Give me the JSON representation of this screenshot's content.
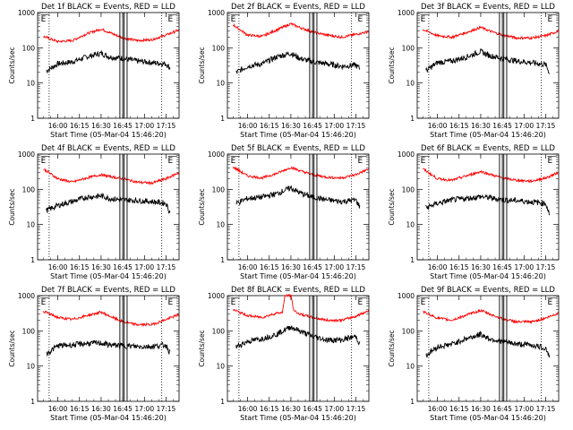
{
  "figure": {
    "y_axis_label": "Counts/sec",
    "x_axis_label": "Start Time (05-Mar-04 15:46:20)",
    "y_tick_labels": [
      "1",
      "10",
      "100",
      "1000"
    ],
    "x_tick_labels": [
      "16:00",
      "16:15",
      "16:30",
      "16:45",
      "17:00",
      "17:15"
    ],
    "event_series_color": "#000000",
    "lld_series_color": "#ff0000",
    "flag_marker_label": "E"
  },
  "chart_data": [
    {
      "type": "line",
      "title": "Det 1f BLACK = Events, RED = LLD",
      "xlabel": "Start Time (05-Mar-04 15:46:20)",
      "ylabel": "Counts/sec",
      "y_scale": "log",
      "ylim": [
        1,
        1000
      ],
      "xlim": [
        "15:46",
        "17:24"
      ],
      "series": [
        {
          "name": "BLACK = Events",
          "color": "#000000",
          "x": [
            "15:52",
            "16:00",
            "16:10",
            "16:20",
            "16:30",
            "16:36",
            "16:45",
            "16:55",
            "17:05",
            "17:15",
            "17:18"
          ],
          "values": [
            22,
            35,
            40,
            55,
            70,
            55,
            50,
            42,
            38,
            35,
            26
          ]
        },
        {
          "name": "RED = LLD",
          "color": "#ff0000",
          "x": [
            "15:50",
            "16:00",
            "16:10",
            "16:20",
            "16:30",
            "16:36",
            "16:45",
            "16:55",
            "17:05",
            "17:15",
            "17:24"
          ],
          "values": [
            210,
            150,
            160,
            250,
            340,
            270,
            190,
            160,
            170,
            230,
            320
          ]
        }
      ],
      "vertical_lines": [
        "16:43",
        "16:45",
        "16:46",
        "16:48"
      ],
      "dotted_lines": [
        "15:54",
        "17:12"
      ],
      "flags": [
        "15:47",
        "17:15"
      ]
    },
    {
      "type": "line",
      "title": "Det 2f BLACK = Events, RED = LLD",
      "xlabel": "Start Time (05-Mar-04 15:46:20)",
      "ylabel": "Counts/sec",
      "y_scale": "log",
      "ylim": [
        1,
        1000
      ],
      "xlim": [
        "15:46",
        "17:24"
      ],
      "series": [
        {
          "name": "BLACK = Events",
          "color": "#000000",
          "x": [
            "15:52",
            "16:00",
            "16:10",
            "16:20",
            "16:30",
            "16:36",
            "16:45",
            "16:55",
            "17:05",
            "17:15",
            "17:18"
          ],
          "values": [
            20,
            30,
            35,
            55,
            70,
            50,
            40,
            35,
            30,
            32,
            25
          ]
        },
        {
          "name": "RED = LLD",
          "color": "#ff0000",
          "x": [
            "15:50",
            "16:00",
            "16:10",
            "16:20",
            "16:30",
            "16:36",
            "16:45",
            "16:55",
            "17:05",
            "17:15",
            "17:24"
          ],
          "values": [
            450,
            230,
            210,
            320,
            480,
            380,
            280,
            230,
            200,
            240,
            290
          ]
        }
      ],
      "vertical_lines": [
        "16:43",
        "16:45",
        "16:46",
        "16:48"
      ],
      "dotted_lines": [
        "15:54",
        "17:12"
      ],
      "flags": [
        "15:47",
        "17:15"
      ]
    },
    {
      "type": "line",
      "title": "Det 3f BLACK = Events, RED = LLD",
      "xlabel": "Start Time (05-Mar-04 15:46:20)",
      "ylabel": "Counts/sec",
      "y_scale": "log",
      "ylim": [
        1,
        1000
      ],
      "xlim": [
        "15:46",
        "17:24"
      ],
      "series": [
        {
          "name": "BLACK = Events",
          "color": "#000000",
          "x": [
            "15:52",
            "16:00",
            "16:10",
            "16:20",
            "16:30",
            "16:36",
            "16:45",
            "16:55",
            "17:05",
            "17:15",
            "17:18"
          ],
          "values": [
            22,
            38,
            42,
            55,
            78,
            60,
            50,
            42,
            38,
            33,
            18
          ]
        },
        {
          "name": "RED = LLD",
          "color": "#ff0000",
          "x": [
            "15:50",
            "16:00",
            "16:10",
            "16:20",
            "16:30",
            "16:36",
            "16:45",
            "16:55",
            "17:05",
            "17:15",
            "17:24"
          ],
          "values": [
            330,
            220,
            200,
            270,
            380,
            300,
            230,
            190,
            190,
            220,
            300
          ]
        }
      ],
      "vertical_lines": [
        "16:43",
        "16:45",
        "16:46",
        "16:48"
      ],
      "dotted_lines": [
        "15:54",
        "17:12"
      ],
      "flags": [
        "15:47",
        "17:15"
      ]
    },
    {
      "type": "line",
      "title": "Det 4f BLACK = Events, RED = LLD",
      "xlabel": "Start Time (05-Mar-04 15:46:20)",
      "ylabel": "Counts/sec",
      "y_scale": "log",
      "ylim": [
        1,
        1000
      ],
      "xlim": [
        "15:46",
        "17:24"
      ],
      "series": [
        {
          "name": "BLACK = Events",
          "color": "#000000",
          "x": [
            "15:52",
            "16:00",
            "16:10",
            "16:20",
            "16:30",
            "16:36",
            "16:45",
            "16:55",
            "17:05",
            "17:15",
            "17:18"
          ],
          "values": [
            25,
            35,
            45,
            60,
            65,
            55,
            50,
            48,
            45,
            40,
            20
          ]
        },
        {
          "name": "RED = LLD",
          "color": "#ff0000",
          "x": [
            "15:50",
            "16:00",
            "16:10",
            "16:20",
            "16:30",
            "16:36",
            "16:45",
            "16:55",
            "17:05",
            "17:15",
            "17:24"
          ],
          "values": [
            380,
            200,
            160,
            210,
            260,
            230,
            200,
            160,
            150,
            200,
            300
          ]
        }
      ],
      "vertical_lines": [
        "16:43",
        "16:45",
        "16:46",
        "16:48"
      ],
      "dotted_lines": [
        "15:54",
        "17:12"
      ],
      "flags": [
        "15:47",
        "17:15"
      ]
    },
    {
      "type": "line",
      "title": "Det 5f BLACK = Events, RED = LLD",
      "xlabel": "Start Time (05-Mar-04 15:46:20)",
      "ylabel": "Counts/sec",
      "y_scale": "log",
      "ylim": [
        1,
        1000
      ],
      "xlim": [
        "15:46",
        "17:24"
      ],
      "series": [
        {
          "name": "BLACK = Events",
          "color": "#000000",
          "x": [
            "15:52",
            "16:00",
            "16:10",
            "16:20",
            "16:30",
            "16:36",
            "16:45",
            "16:55",
            "17:05",
            "17:15",
            "17:18"
          ],
          "values": [
            40,
            55,
            60,
            75,
            110,
            80,
            60,
            50,
            45,
            50,
            30
          ]
        },
        {
          "name": "RED = LLD",
          "color": "#ff0000",
          "x": [
            "15:50",
            "16:00",
            "16:10",
            "16:20",
            "16:30",
            "16:36",
            "16:45",
            "16:55",
            "17:05",
            "17:15",
            "17:24"
          ],
          "values": [
            430,
            240,
            210,
            280,
            420,
            340,
            260,
            220,
            210,
            260,
            380
          ]
        }
      ],
      "vertical_lines": [
        "16:43",
        "16:45",
        "16:46",
        "16:48"
      ],
      "dotted_lines": [
        "15:54",
        "17:12"
      ],
      "flags": [
        "15:47",
        "17:15"
      ]
    },
    {
      "type": "line",
      "title": "Det 6f BLACK = Events, RED = LLD",
      "xlabel": "Start Time (05-Mar-04 15:46:20)",
      "ylabel": "Counts/sec",
      "y_scale": "log",
      "ylim": [
        1,
        1000
      ],
      "xlim": [
        "15:46",
        "17:24"
      ],
      "series": [
        {
          "name": "BLACK = Events",
          "color": "#000000",
          "x": [
            "15:52",
            "16:00",
            "16:10",
            "16:20",
            "16:30",
            "16:36",
            "16:45",
            "16:55",
            "17:05",
            "17:15",
            "17:18"
          ],
          "values": [
            30,
            40,
            50,
            55,
            62,
            58,
            50,
            48,
            44,
            40,
            18
          ]
        },
        {
          "name": "RED = LLD",
          "color": "#ff0000",
          "x": [
            "15:50",
            "16:00",
            "16:10",
            "16:20",
            "16:30",
            "16:36",
            "16:45",
            "16:55",
            "17:05",
            "17:15",
            "17:24"
          ],
          "values": [
            380,
            200,
            180,
            240,
            320,
            270,
            210,
            180,
            170,
            210,
            300
          ]
        }
      ],
      "vertical_lines": [
        "16:43",
        "16:45",
        "16:46",
        "16:48"
      ],
      "dotted_lines": [
        "15:54",
        "17:12"
      ],
      "flags": [
        "15:47",
        "17:15"
      ]
    },
    {
      "type": "line",
      "title": "Det 7f BLACK = Events, RED = LLD",
      "xlabel": "Start Time (05-Mar-04 15:46:20)",
      "ylabel": "Counts/sec",
      "y_scale": "log",
      "ylim": [
        1,
        1000
      ],
      "xlim": [
        "15:46",
        "17:24"
      ],
      "series": [
        {
          "name": "BLACK = Events",
          "color": "#000000",
          "x": [
            "15:52",
            "16:00",
            "16:10",
            "16:20",
            "16:30",
            "16:36",
            "16:45",
            "16:55",
            "17:05",
            "17:15",
            "17:18"
          ],
          "values": [
            22,
            38,
            40,
            44,
            45,
            40,
            38,
            36,
            36,
            40,
            22
          ]
        },
        {
          "name": "RED = LLD",
          "color": "#ff0000",
          "x": [
            "15:50",
            "16:00",
            "16:10",
            "16:20",
            "16:30",
            "16:36",
            "16:45",
            "16:55",
            "17:05",
            "17:15",
            "17:24"
          ],
          "values": [
            360,
            240,
            210,
            270,
            340,
            260,
            180,
            150,
            150,
            210,
            290
          ]
        }
      ],
      "vertical_lines": [
        "16:43",
        "16:45",
        "16:46",
        "16:48"
      ],
      "dotted_lines": [
        "15:54",
        "17:12"
      ],
      "flags": [
        "15:47",
        "17:15"
      ]
    },
    {
      "type": "line",
      "title": "Det 8f BLACK = Events, RED = LLD",
      "xlabel": "Start Time (05-Mar-04 15:46:20)",
      "ylabel": "Counts/sec",
      "y_scale": "log",
      "ylim": [
        1,
        1000
      ],
      "xlim": [
        "15:46",
        "17:24"
      ],
      "series": [
        {
          "name": "BLACK = Events",
          "color": "#000000",
          "x": [
            "15:52",
            "16:00",
            "16:10",
            "16:20",
            "16:30",
            "16:36",
            "16:45",
            "16:55",
            "17:05",
            "17:15",
            "17:18"
          ],
          "values": [
            35,
            50,
            60,
            80,
            130,
            100,
            70,
            55,
            55,
            70,
            40
          ]
        },
        {
          "name": "RED = LLD",
          "color": "#ff0000",
          "x": [
            "15:50",
            "16:00",
            "16:10",
            "16:20",
            "16:24",
            "16:26",
            "16:30",
            "16:32",
            "16:36",
            "16:45",
            "16:55",
            "17:05",
            "17:15",
            "17:24"
          ],
          "values": [
            400,
            270,
            240,
            320,
            330,
            1000,
            1000,
            380,
            300,
            240,
            200,
            200,
            260,
            380
          ]
        }
      ],
      "vertical_lines": [
        "16:43",
        "16:45",
        "16:46",
        "16:48"
      ],
      "dotted_lines": [
        "15:54",
        "17:12"
      ],
      "flags": [
        "15:47",
        "17:15"
      ]
    },
    {
      "type": "line",
      "title": "Det 9f BLACK = Events, RED = LLD",
      "xlabel": "Start Time (05-Mar-04 15:46:20)",
      "ylabel": "Counts/sec",
      "y_scale": "log",
      "ylim": [
        1,
        1000
      ],
      "xlim": [
        "15:46",
        "17:24"
      ],
      "series": [
        {
          "name": "BLACK = Events",
          "color": "#000000",
          "x": [
            "15:52",
            "16:00",
            "16:10",
            "16:20",
            "16:30",
            "16:36",
            "16:45",
            "16:55",
            "17:05",
            "17:15",
            "17:18"
          ],
          "values": [
            20,
            35,
            42,
            60,
            80,
            60,
            50,
            42,
            40,
            32,
            18
          ]
        },
        {
          "name": "RED = LLD",
          "color": "#ff0000",
          "x": [
            "15:50",
            "16:00",
            "16:10",
            "16:20",
            "16:30",
            "16:36",
            "16:45",
            "16:55",
            "17:05",
            "17:15",
            "17:24"
          ],
          "values": [
            350,
            230,
            200,
            280,
            380,
            300,
            220,
            180,
            180,
            230,
            320
          ]
        }
      ],
      "vertical_lines": [
        "16:43",
        "16:45",
        "16:46",
        "16:48"
      ],
      "dotted_lines": [
        "15:54",
        "17:12"
      ],
      "flags": [
        "15:47",
        "17:15"
      ]
    }
  ]
}
